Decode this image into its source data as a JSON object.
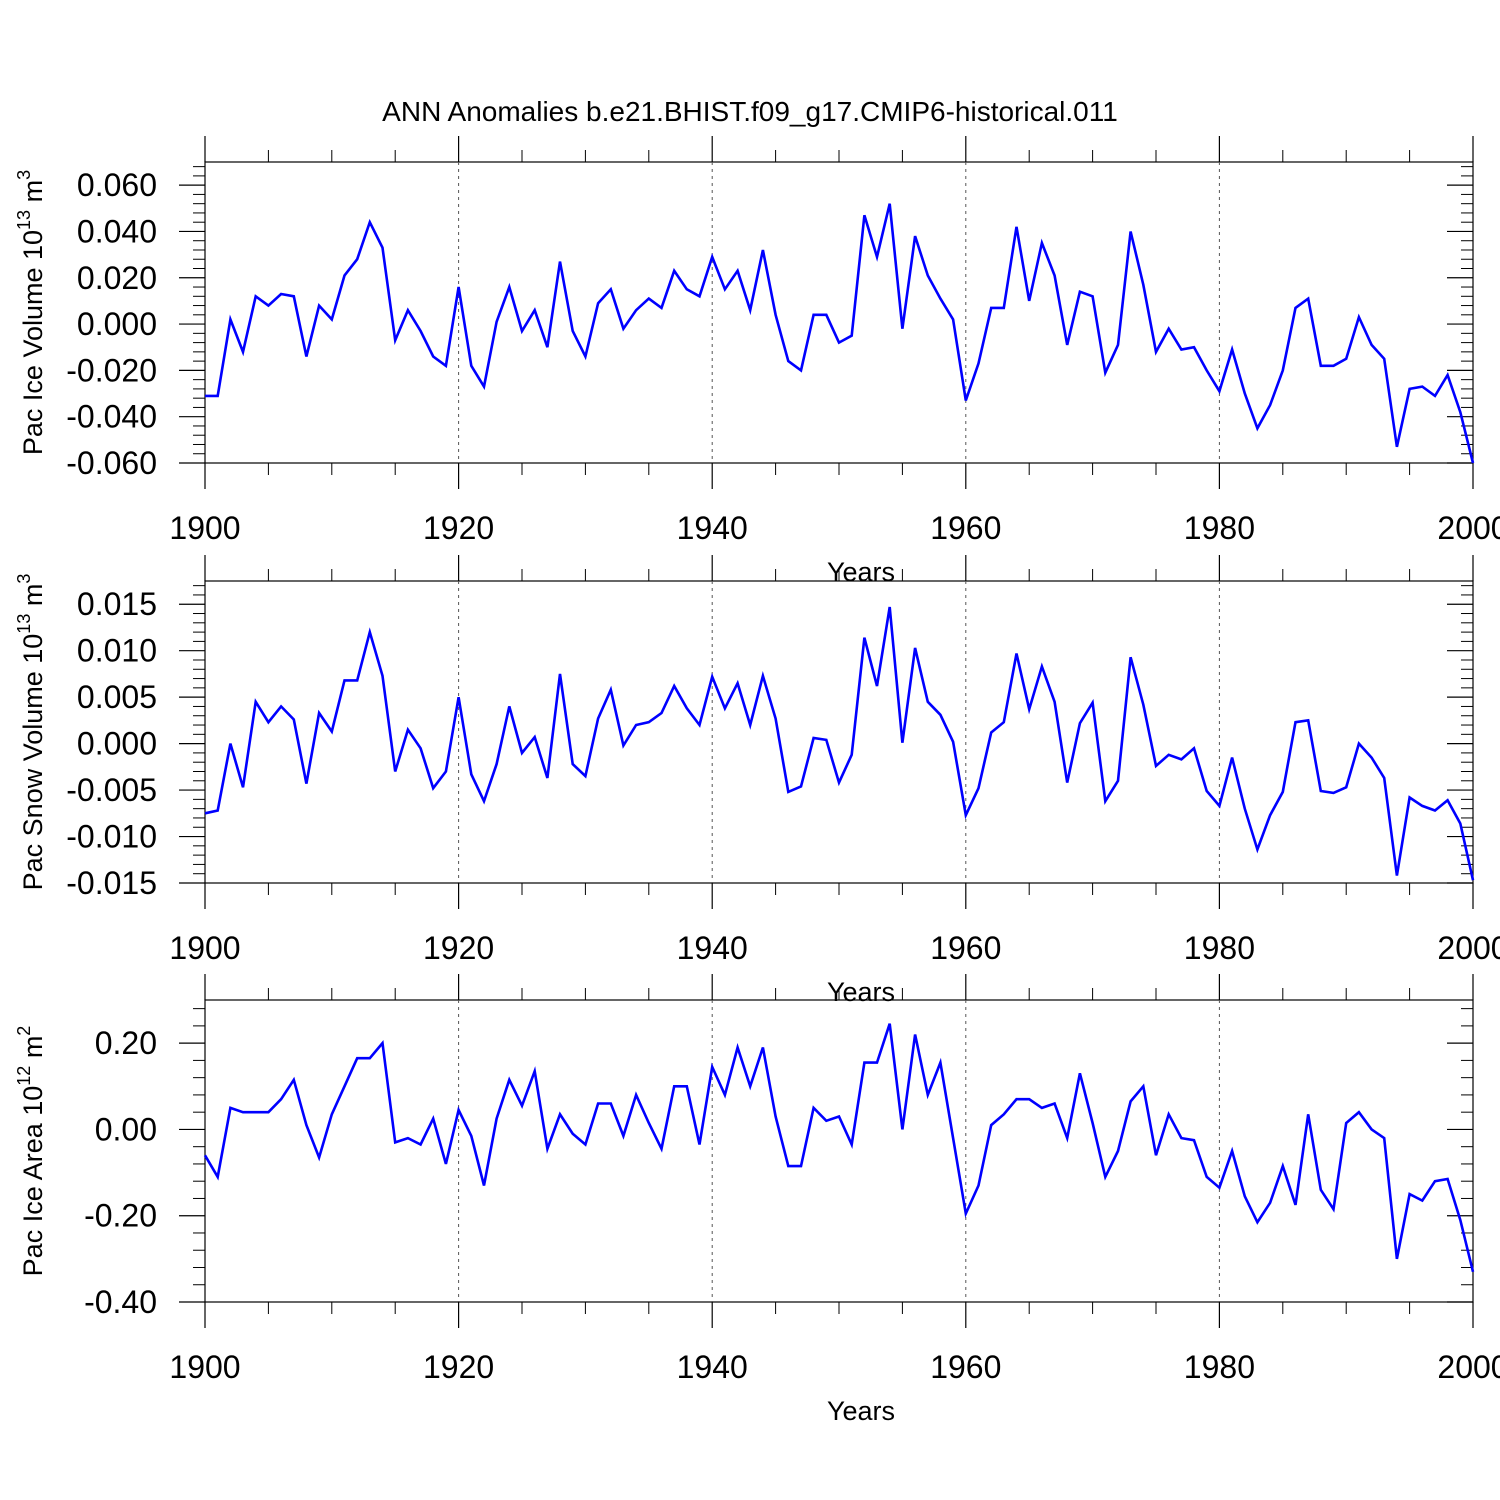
{
  "figure": {
    "title": "ANN Anomalies b.e21.BHIST.f09_g17.CMIP6-historical.011",
    "line_color": "#0000ff"
  },
  "chart_data": [
    {
      "type": "line",
      "ylabel_main": "Pac Ice Volume 10",
      "ylabel_exp": "13",
      "ylabel_unit": " m",
      "ylabel_unit_exp": "3",
      "xlabel": "Years",
      "xlim": [
        1900,
        2000
      ],
      "ylim": [
        -0.06,
        0.07
      ],
      "xticks": [
        1900,
        1920,
        1940,
        1960,
        1980,
        2000
      ],
      "xtick_labels": [
        "1900",
        "1920",
        "1940",
        "1960",
        "1980",
        "2000"
      ],
      "yticks": [
        -0.06,
        -0.04,
        -0.02,
        0.0,
        0.02,
        0.04,
        0.06
      ],
      "ytick_labels": [
        "-0.060",
        "-0.040",
        "-0.020",
        "0.000",
        "0.020",
        "0.040",
        "0.060"
      ],
      "x_start": 1900,
      "values": [
        -0.031,
        -0.031,
        0.002,
        -0.012,
        0.012,
        0.008,
        0.013,
        0.012,
        -0.014,
        0.008,
        0.002,
        0.021,
        0.028,
        0.044,
        0.033,
        -0.007,
        0.006,
        -0.003,
        -0.014,
        -0.018,
        0.016,
        -0.018,
        -0.027,
        0.001,
        0.016,
        -0.003,
        0.006,
        -0.01,
        0.027,
        -0.003,
        -0.014,
        0.009,
        0.015,
        -0.002,
        0.006,
        0.011,
        0.007,
        0.023,
        0.015,
        0.012,
        0.029,
        0.015,
        0.023,
        0.006,
        0.032,
        0.004,
        -0.016,
        -0.02,
        0.004,
        0.004,
        -0.008,
        -0.005,
        0.047,
        0.029,
        0.052,
        -0.002,
        0.038,
        0.021,
        0.011,
        0.002,
        -0.033,
        -0.017,
        0.007,
        0.007,
        0.042,
        0.01,
        0.035,
        0.021,
        -0.009,
        0.014,
        0.012,
        -0.021,
        -0.009,
        0.04,
        0.017,
        -0.012,
        -0.002,
        -0.011,
        -0.01,
        -0.02,
        -0.029,
        -0.011,
        -0.03,
        -0.045,
        -0.035,
        -0.02,
        0.007,
        0.011,
        -0.018,
        -0.018,
        -0.015,
        0.003,
        -0.009,
        -0.015,
        -0.053,
        -0.028,
        -0.027,
        -0.031,
        -0.022,
        -0.038,
        -0.06
      ]
    },
    {
      "type": "line",
      "ylabel_main": "Pac Snow Volume 10",
      "ylabel_exp": "13",
      "ylabel_unit": " m",
      "ylabel_unit_exp": "3",
      "xlabel": "Years",
      "xlim": [
        1900,
        2000
      ],
      "ylim": [
        -0.015,
        0.0175
      ],
      "xticks": [
        1900,
        1920,
        1940,
        1960,
        1980,
        2000
      ],
      "xtick_labels": [
        "1900",
        "1920",
        "1940",
        "1960",
        "1980",
        "2000"
      ],
      "yticks": [
        -0.015,
        -0.01,
        -0.005,
        0.0,
        0.005,
        0.01,
        0.015
      ],
      "ytick_labels": [
        "-0.015",
        "-0.010",
        "-0.005",
        "0.000",
        "0.005",
        "0.010",
        "0.015"
      ],
      "x_start": 1900,
      "values": [
        -0.0075,
        -0.0072,
        0.0,
        -0.0047,
        0.0045,
        0.0023,
        0.004,
        0.0026,
        -0.0043,
        0.0033,
        0.0013,
        0.0068,
        0.0068,
        0.012,
        0.0073,
        -0.003,
        0.0015,
        -0.0005,
        -0.0048,
        -0.003,
        0.005,
        -0.0033,
        -0.0062,
        -0.0022,
        0.004,
        -0.001,
        0.0007,
        -0.0037,
        0.0075,
        -0.0022,
        -0.0035,
        0.0027,
        0.0058,
        -0.0002,
        0.002,
        0.0023,
        0.0033,
        0.0062,
        0.0038,
        0.002,
        0.0072,
        0.0038,
        0.0065,
        0.002,
        0.0073,
        0.0027,
        -0.0052,
        -0.0046,
        0.0006,
        0.0004,
        -0.0042,
        -0.0012,
        0.0114,
        0.0062,
        0.0147,
        0.0001,
        0.0103,
        0.0045,
        0.0031,
        0.0002,
        -0.0077,
        -0.0048,
        0.0012,
        0.0023,
        0.0097,
        0.0037,
        0.0083,
        0.0045,
        -0.0042,
        0.0022,
        0.0044,
        -0.0062,
        -0.004,
        0.0093,
        0.0042,
        -0.0024,
        -0.0012,
        -0.0017,
        -0.0005,
        -0.0051,
        -0.0067,
        -0.0015,
        -0.007,
        -0.0114,
        -0.0077,
        -0.0052,
        0.0023,
        0.0025,
        -0.0051,
        -0.0053,
        -0.0047,
        0.0,
        -0.0015,
        -0.0037,
        -0.0142,
        -0.0058,
        -0.0067,
        -0.0072,
        -0.0061,
        -0.0086,
        -0.0147
      ]
    },
    {
      "type": "line",
      "ylabel_main": "Pac Ice Area 10",
      "ylabel_exp": "12",
      "ylabel_unit": " m",
      "ylabel_unit_exp": "2",
      "xlabel": "Years",
      "xlim": [
        1900,
        2000
      ],
      "ylim": [
        -0.4,
        0.3
      ],
      "xticks": [
        1900,
        1920,
        1940,
        1960,
        1980,
        2000
      ],
      "xtick_labels": [
        "1900",
        "1920",
        "1940",
        "1960",
        "1980",
        "2000"
      ],
      "yticks": [
        -0.4,
        -0.2,
        0.0,
        0.2
      ],
      "ytick_labels": [
        "-0.40",
        "-0.20",
        "0.00",
        "0.20"
      ],
      "x_start": 1900,
      "values": [
        -0.06,
        -0.11,
        0.05,
        0.04,
        0.04,
        0.04,
        0.07,
        0.115,
        0.01,
        -0.065,
        0.035,
        0.1,
        0.165,
        0.165,
        0.2,
        -0.03,
        -0.02,
        -0.035,
        0.025,
        -0.08,
        0.045,
        -0.015,
        -0.13,
        0.025,
        0.115,
        0.055,
        0.135,
        -0.045,
        0.035,
        -0.01,
        -0.035,
        0.06,
        0.06,
        -0.015,
        0.08,
        0.015,
        -0.045,
        0.1,
        0.1,
        -0.035,
        0.145,
        0.08,
        0.19,
        0.1,
        0.19,
        0.03,
        -0.085,
        -0.085,
        0.05,
        0.02,
        0.03,
        -0.035,
        0.155,
        0.155,
        0.245,
        0.0,
        0.22,
        0.08,
        0.155,
        -0.02,
        -0.195,
        -0.13,
        0.01,
        0.035,
        0.07,
        0.07,
        0.05,
        0.06,
        -0.02,
        0.13,
        0.015,
        -0.11,
        -0.05,
        0.065,
        0.1,
        -0.06,
        0.035,
        -0.02,
        -0.025,
        -0.11,
        -0.135,
        -0.05,
        -0.155,
        -0.215,
        -0.17,
        -0.085,
        -0.175,
        0.035,
        -0.14,
        -0.185,
        0.015,
        0.04,
        0.0,
        -0.02,
        -0.3,
        -0.15,
        -0.165,
        -0.12,
        -0.115,
        -0.21,
        -0.33
      ]
    }
  ]
}
